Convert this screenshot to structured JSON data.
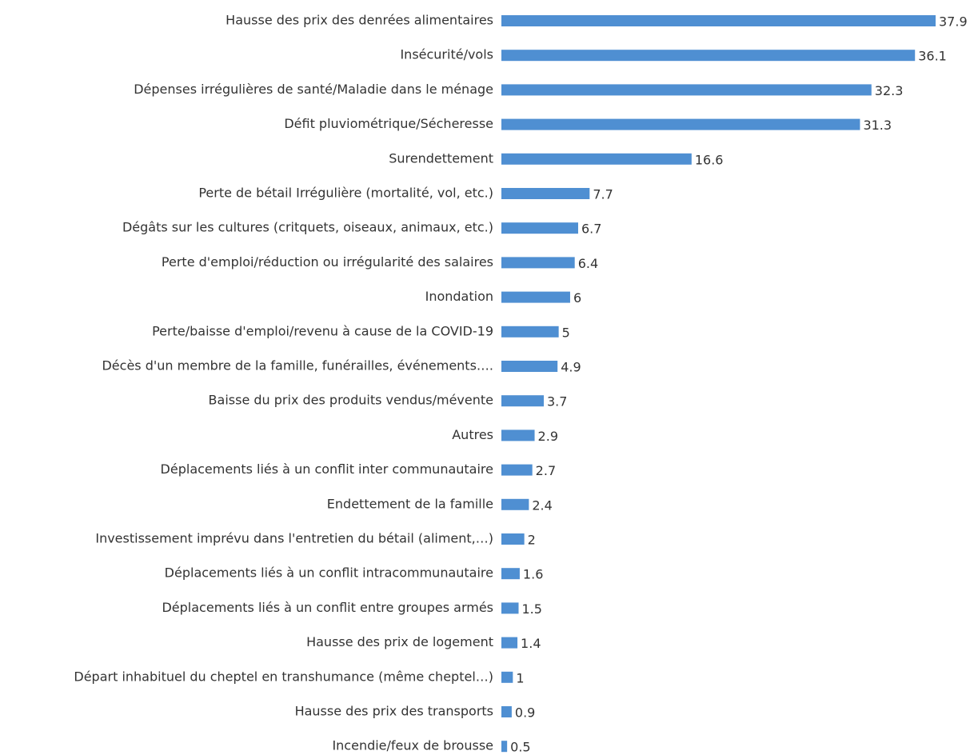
{
  "chart_data": {
    "type": "bar",
    "orientation": "horizontal",
    "color": "#4f8fd2",
    "categories": [
      "Hausse des prix des denrées alimentaires",
      "Insécurité/vols",
      "Dépenses irrégulières de santé/Maladie dans le ménage",
      "Défit pluviométrique/Sécheresse",
      "Surendettement",
      "Perte de bétail Irrégulière (mortalité, vol, etc.)",
      "Dégâts sur les cultures (critquets, oiseaux, animaux, etc.)",
      "Perte d'emploi/réduction ou irrégularité des salaires",
      "Inondation",
      "Perte/baisse d'emploi/revenu à cause de la COVID-19",
      "Décès d'un membre de la famille, funérailles, événements….",
      "Baisse du prix des produits vendus/mévente",
      "Autres",
      "Déplacements liés à un conflit inter communautaire",
      "Endettement de la famille",
      "Investissement imprévu dans l'entretien du bétail (aliment,…)",
      "Déplacements liés à un conflit intracommunautaire",
      "Déplacements liés à un conflit entre groupes armés",
      "Hausse des prix de logement",
      "Départ inhabituel du cheptel en transhumance (même cheptel…)",
      "Hausse des prix des transports",
      "Incendie/feux de brousse"
    ],
    "values": [
      37.9,
      36.1,
      32.3,
      31.3,
      16.6,
      7.7,
      6.7,
      6.4,
      6,
      5,
      4.9,
      3.7,
      2.9,
      2.7,
      2.4,
      2,
      1.6,
      1.5,
      1.4,
      1,
      0.9,
      0.5
    ]
  }
}
